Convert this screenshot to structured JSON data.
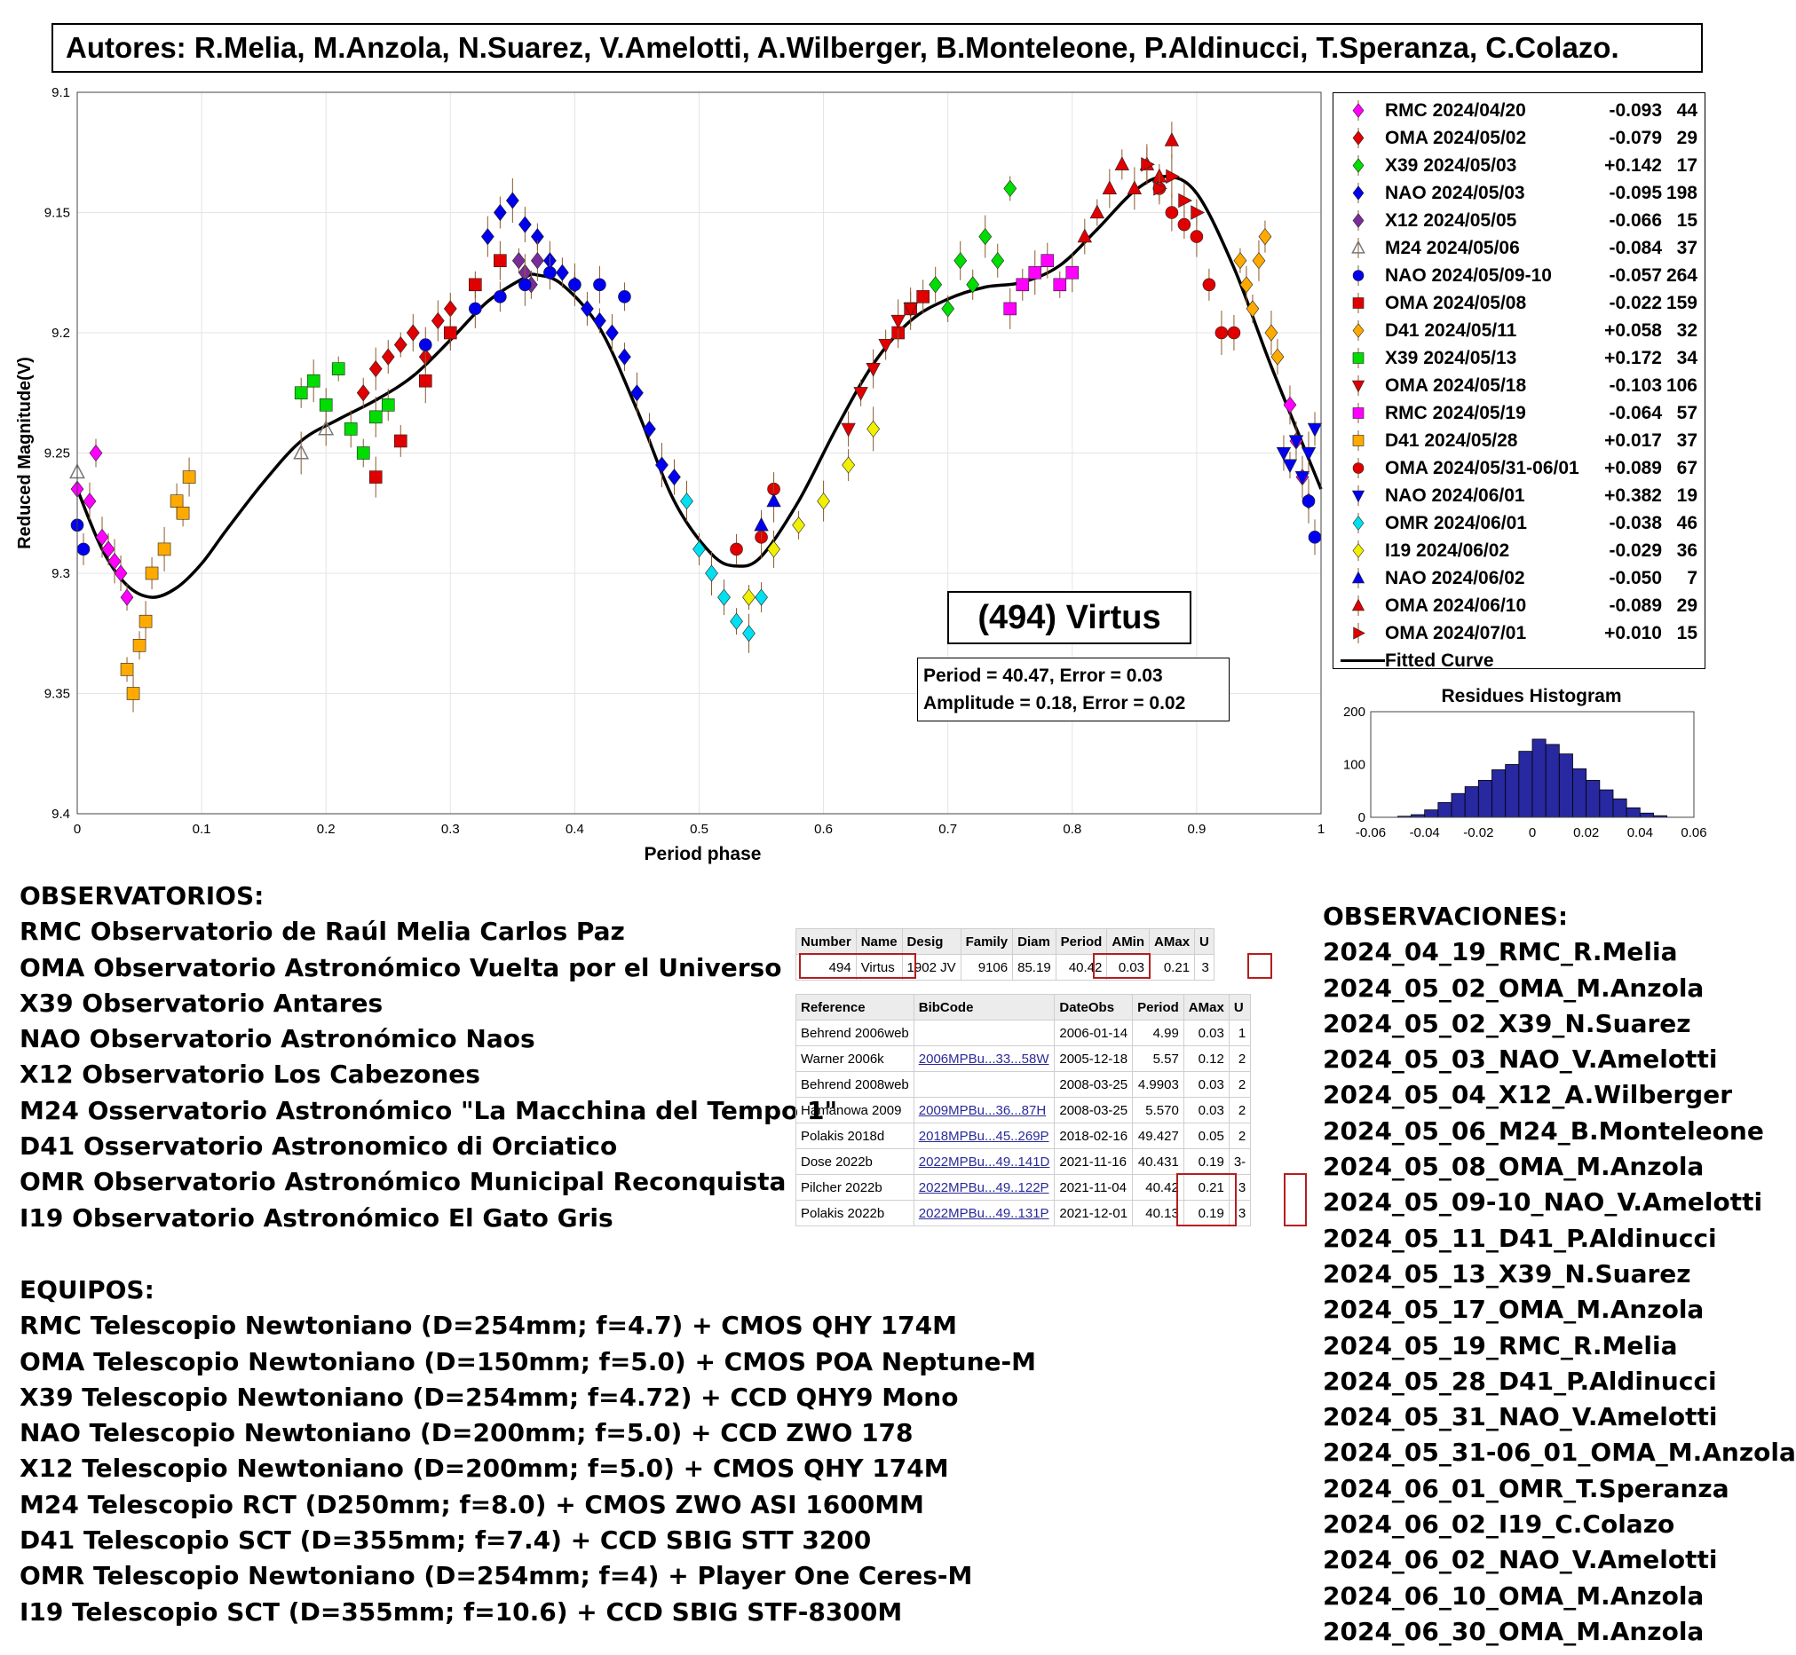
{
  "authors": "Autores: R.Melia, M.Anzola, N.Suarez, V.Amelotti, A.Wilberger, B.Monteleone, P.Aldinucci, T.Speranza, C.Colazo.",
  "chart_data": {
    "type": "scatter",
    "title": "(494) Virtus",
    "xlabel": "Period phase",
    "ylabel": "Reduced Magnitude(V)",
    "xlim": [
      0,
      1
    ],
    "ylim": [
      9.1,
      9.4
    ],
    "y_reversed": true,
    "xticks": [
      "0",
      "0.1",
      "0.2",
      "0.3",
      "0.4",
      "0.5",
      "0.6",
      "0.7",
      "0.8",
      "0.9",
      "1"
    ],
    "yticks": [
      "9.1",
      "9.15",
      "9.2",
      "9.25",
      "9.3",
      "9.35",
      "9.4"
    ],
    "grid": true,
    "legend_position": "right",
    "stats": {
      "period_line": "Period =  40.47, Error = 0.03",
      "amplitude_line": "Amplitude = 0.18, Error = 0.02"
    },
    "fitted_curve": {
      "name": "Fitted Curve",
      "x": [
        0,
        0.02,
        0.04,
        0.06,
        0.08,
        0.1,
        0.12,
        0.15,
        0.18,
        0.21,
        0.24,
        0.27,
        0.3,
        0.33,
        0.36,
        0.37,
        0.39,
        0.42,
        0.45,
        0.48,
        0.51,
        0.53,
        0.55,
        0.58,
        0.61,
        0.64,
        0.67,
        0.7,
        0.73,
        0.76,
        0.79,
        0.82,
        0.85,
        0.875,
        0.9,
        0.93,
        0.96,
        1.0
      ],
      "y": [
        9.265,
        9.29,
        9.305,
        9.31,
        9.306,
        9.296,
        9.282,
        9.262,
        9.245,
        9.236,
        9.228,
        9.218,
        9.203,
        9.187,
        9.177,
        9.176,
        9.18,
        9.198,
        9.232,
        9.27,
        9.292,
        9.297,
        9.293,
        9.27,
        9.24,
        9.213,
        9.195,
        9.186,
        9.181,
        9.179,
        9.172,
        9.157,
        9.141,
        9.135,
        9.142,
        9.173,
        9.214,
        9.265
      ]
    },
    "series": [
      {
        "name": "RMC 2024/04/20",
        "offset": "-0.093",
        "count": "44",
        "color": "#ff00ff",
        "marker": "diamond",
        "x": [
          0.0,
          0.01,
          0.015,
          0.02,
          0.025,
          0.03,
          0.035,
          0.04,
          0.975,
          0.98,
          0.985,
          0.99
        ],
        "y": [
          9.265,
          9.27,
          9.25,
          9.285,
          9.29,
          9.295,
          9.3,
          9.31,
          9.23,
          9.245,
          9.26,
          9.27
        ]
      },
      {
        "name": "OMA 2024/05/02",
        "offset": "-0.079",
        "count": "29",
        "color": "#e00000",
        "marker": "diamond",
        "x": [
          0.23,
          0.24,
          0.25,
          0.26,
          0.27,
          0.28,
          0.29,
          0.3
        ],
        "y": [
          9.225,
          9.215,
          9.21,
          9.205,
          9.2,
          9.21,
          9.195,
          9.19
        ]
      },
      {
        "name": "X39 2024/05/03",
        "offset": "+0.142",
        "count": "17",
        "color": "#00dd00",
        "marker": "diamond",
        "x": [
          0.69,
          0.7,
          0.71,
          0.72,
          0.73,
          0.74,
          0.75
        ],
        "y": [
          9.18,
          9.19,
          9.17,
          9.18,
          9.16,
          9.17,
          9.14
        ]
      },
      {
        "name": "NAO 2024/05/03",
        "offset": "-0.095",
        "count": "198",
        "color": "#0000ee",
        "marker": "diamond",
        "x": [
          0.33,
          0.34,
          0.35,
          0.36,
          0.37,
          0.38,
          0.39,
          0.4,
          0.41,
          0.42,
          0.43,
          0.44,
          0.45,
          0.46,
          0.47,
          0.48
        ],
        "y": [
          9.16,
          9.15,
          9.145,
          9.155,
          9.16,
          9.17,
          9.175,
          9.18,
          9.19,
          9.195,
          9.2,
          9.21,
          9.225,
          9.24,
          9.255,
          9.26
        ]
      },
      {
        "name": "X12 2024/05/05",
        "offset": "-0.066",
        "count": "15",
        "color": "#7a2d9a",
        "marker": "diamond",
        "x": [
          0.355,
          0.36,
          0.365,
          0.37
        ],
        "y": [
          9.17,
          9.175,
          9.18,
          9.17
        ]
      },
      {
        "name": "M24 2024/05/06",
        "offset": "-0.084",
        "count": "37",
        "color": "#ff00ff",
        "marker": "triangle-up-open",
        "x": [
          0.0,
          0.18,
          0.2
        ],
        "y": [
          9.258,
          9.25,
          9.24
        ]
      },
      {
        "name": "NAO 2024/05/09-10",
        "offset": "-0.057",
        "count": "264",
        "color": "#0000ee",
        "marker": "circle",
        "x": [
          0.28,
          0.3,
          0.32,
          0.34,
          0.36,
          0.38,
          0.4,
          0.42,
          0.44,
          0.0,
          0.005,
          0.99,
          0.995
        ],
        "y": [
          9.205,
          9.2,
          9.19,
          9.185,
          9.18,
          9.175,
          9.18,
          9.18,
          9.185,
          9.28,
          9.29,
          9.27,
          9.285
        ]
      },
      {
        "name": "OMA 2024/05/08",
        "offset": "-0.022",
        "count": "159",
        "color": "#e00000",
        "marker": "square",
        "x": [
          0.24,
          0.26,
          0.28,
          0.3,
          0.32,
          0.34,
          0.66,
          0.67,
          0.68
        ],
        "y": [
          9.26,
          9.245,
          9.22,
          9.2,
          9.18,
          9.17,
          9.2,
          9.19,
          9.185
        ]
      },
      {
        "name": "D41 2024/05/11",
        "offset": "+0.058",
        "count": "32",
        "color": "#ffaa00",
        "marker": "diamond",
        "x": [
          0.935,
          0.94,
          0.945,
          0.95,
          0.955,
          0.96,
          0.965
        ],
        "y": [
          9.17,
          9.18,
          9.19,
          9.17,
          9.16,
          9.2,
          9.21
        ]
      },
      {
        "name": "X39 2024/05/13",
        "offset": "+0.172",
        "count": "34",
        "color": "#00dd00",
        "marker": "square",
        "x": [
          0.18,
          0.19,
          0.2,
          0.21,
          0.22,
          0.23,
          0.24,
          0.25
        ],
        "y": [
          9.225,
          9.22,
          9.23,
          9.215,
          9.24,
          9.25,
          9.235,
          9.23
        ]
      },
      {
        "name": "OMA 2024/05/18",
        "offset": "-0.103",
        "count": "106",
        "color": "#e00000",
        "marker": "triangle-down",
        "x": [
          0.62,
          0.63,
          0.64,
          0.65,
          0.66,
          0.67
        ],
        "y": [
          9.24,
          9.225,
          9.215,
          9.205,
          9.195,
          9.19
        ]
      },
      {
        "name": "RMC 2024/05/19",
        "offset": "-0.064",
        "count": "57",
        "color": "#ff00ff",
        "marker": "square",
        "x": [
          0.75,
          0.76,
          0.77,
          0.78,
          0.79,
          0.8
        ],
        "y": [
          9.19,
          9.18,
          9.175,
          9.17,
          9.18,
          9.175
        ]
      },
      {
        "name": "D41 2024/05/28",
        "offset": "+0.017",
        "count": "37",
        "color": "#ffaa00",
        "marker": "square",
        "x": [
          0.04,
          0.045,
          0.05,
          0.055,
          0.06,
          0.07,
          0.08,
          0.085,
          0.09
        ],
        "y": [
          9.34,
          9.35,
          9.33,
          9.32,
          9.3,
          9.29,
          9.27,
          9.275,
          9.26
        ]
      },
      {
        "name": "OMA 2024/05/31-06/01",
        "offset": "+0.089",
        "count": "67",
        "color": "#e00000",
        "marker": "circle",
        "x": [
          0.53,
          0.55,
          0.56,
          0.87,
          0.88,
          0.89,
          0.9,
          0.91,
          0.92,
          0.93
        ],
        "y": [
          9.29,
          9.285,
          9.265,
          9.14,
          9.15,
          9.155,
          9.16,
          9.18,
          9.2,
          9.2
        ]
      },
      {
        "name": "NAO 2024/06/01",
        "offset": "+0.382",
        "count": "19",
        "color": "#0000ee",
        "marker": "triangle-down",
        "x": [
          0.97,
          0.975,
          0.98,
          0.985,
          0.99,
          0.995
        ],
        "y": [
          9.25,
          9.255,
          9.245,
          9.26,
          9.25,
          9.24
        ]
      },
      {
        "name": "OMR 2024/06/01",
        "offset": "-0.038",
        "count": "46",
        "color": "#00e0f0",
        "marker": "diamond",
        "x": [
          0.49,
          0.5,
          0.51,
          0.52,
          0.53,
          0.54,
          0.55
        ],
        "y": [
          9.27,
          9.29,
          9.3,
          9.31,
          9.32,
          9.325,
          9.31
        ]
      },
      {
        "name": "I19 2024/06/02",
        "offset": "-0.029",
        "count": "36",
        "color": "#f0f000",
        "marker": "diamond",
        "x": [
          0.54,
          0.56,
          0.58,
          0.6,
          0.62,
          0.64
        ],
        "y": [
          9.31,
          9.29,
          9.28,
          9.27,
          9.255,
          9.24
        ]
      },
      {
        "name": "NAO 2024/06/02",
        "offset": "-0.050",
        "count": "7",
        "color": "#0000ee",
        "marker": "triangle-up",
        "x": [
          0.55,
          0.56
        ],
        "y": [
          9.28,
          9.27
        ]
      },
      {
        "name": "OMA 2024/06/10",
        "offset": "-0.089",
        "count": "29",
        "color": "#e00000",
        "marker": "triangle-up",
        "x": [
          0.81,
          0.82,
          0.83,
          0.84,
          0.85,
          0.86,
          0.87,
          0.88
        ],
        "y": [
          9.16,
          9.15,
          9.14,
          9.13,
          9.14,
          9.13,
          9.135,
          9.12
        ]
      },
      {
        "name": "OMA 2024/07/01",
        "offset": "+0.010",
        "count": "15",
        "color": "#e00000",
        "marker": "triangle-right",
        "x": [
          0.86,
          0.87,
          0.88,
          0.89,
          0.9
        ],
        "y": [
          9.13,
          9.14,
          9.135,
          9.145,
          9.15
        ]
      }
    ],
    "histogram": {
      "title": "Residues Histogram",
      "xlim": [
        -0.06,
        0.06
      ],
      "ylim": [
        0,
        200
      ],
      "xticks": [
        "-0.06",
        "-0.04",
        "-0.02",
        "0",
        "0.02",
        "0.04",
        "0.06"
      ],
      "yticks": [
        "0",
        "100",
        "200"
      ],
      "bin_width": 0.005,
      "bin_centers": [
        -0.0475,
        -0.0425,
        -0.0375,
        -0.0325,
        -0.0275,
        -0.0225,
        -0.0175,
        -0.0125,
        -0.0075,
        -0.0025,
        0.0025,
        0.0075,
        0.0125,
        0.0175,
        0.0225,
        0.0275,
        0.0325,
        0.0375,
        0.0425,
        0.0475
      ],
      "counts": [
        2,
        5,
        14,
        28,
        45,
        58,
        70,
        90,
        100,
        125,
        148,
        138,
        120,
        92,
        70,
        52,
        35,
        18,
        8,
        3
      ],
      "color": "#2828a0"
    }
  },
  "observatorios": {
    "title": "OBSERVATORIOS:",
    "items": [
      "RMC Observatorio de Raúl Melia Carlos Paz",
      "OMA Observatorio Astronómico Vuelta por el Universo",
      "X39 Observatorio Antares",
      "NAO Observatorio Astronómico Naos",
      "X12 Observatorio Los Cabezones",
      "M24 Osservatorio Astronómico \"La Macchina del Tempo 1\"",
      "D41 Osservatorio Astronomico di Orciatico",
      "OMR Observatorio Astronómico Municipal Reconquista",
      "I19 Observatorio Astronómico El Gato Gris"
    ]
  },
  "equipos": {
    "title": "EQUIPOS:",
    "items": [
      "RMC Telescopio Newtoniano (D=254mm; f=4.7) + CMOS QHY 174M",
      "OMA Telescopio Newtoniano (D=150mm; f=5.0) + CMOS POA Neptune-M",
      "X39 Telescopio Newtoniano (D=254mm; f=4.72) + CCD QHY9 Mono",
      "NAO Telescopio Newtoniano (D=200mm; f=5.0) + CCD ZWO 178",
      "X12 Telescopio Newtoniano (D=200mm; f=5.0) + CMOS QHY 174M",
      "M24 Telescopio RCT (D250mm; f=8.0) + CMOS ZWO ASI 1600MM",
      "D41 Telescopio SCT (D=355mm; f=7.4) + CCD SBIG STT 3200",
      "OMR Telescopio Newtoniano (D=254mm; f=4) + Player One Ceres-M",
      "I19 Telescopio SCT (D=355mm; f=10.6) + CCD SBIG STF-8300M"
    ]
  },
  "observaciones": {
    "title": "OBSERVACIONES:",
    "items": [
      "2024_04_19_RMC_R.Melia",
      "2024_05_02_OMA_M.Anzola",
      "2024_05_02_X39_N.Suarez",
      "2024_05_03_NAO_V.Amelotti",
      "2024_05_04_X12_A.Wilberger",
      "2024_05_06_M24_B.Monteleone",
      "2024_05_08_OMA_M.Anzola",
      "2024_05_09-10_NAO_V.Amelotti",
      "2024_05_11_D41_P.Aldinucci",
      "2024_05_13_X39_N.Suarez",
      "2024_05_17_OMA_M.Anzola",
      "2024_05_19_RMC_R.Melia",
      "2024_05_28_D41_P.Aldinucci",
      "2024_05_31_NAO_V.Amelotti",
      "2024_05_31-06_01_OMA_M.Anzola",
      "2024_06_01_OMR_T.Speranza",
      "2024_06_02_I19_C.Colazo",
      "2024_06_02_NAO_V.Amelotti",
      "2024_06_10_OMA_M.Anzola",
      "2024_06_30_OMA_M.Anzola"
    ]
  },
  "lcdb": {
    "summary_headers": [
      "Number",
      "Name",
      "Desig",
      "Family",
      "Diam",
      "Period",
      "AMin",
      "AMax",
      "U"
    ],
    "summary_row": [
      "494",
      "Virtus",
      "1902 JV",
      "9106",
      "85.19",
      "40.42",
      "0.03",
      "0.21",
      "3"
    ],
    "ref_headers": [
      "Reference",
      "BibCode",
      "DateObs",
      "Period",
      "AMax",
      "U"
    ],
    "ref_rows": [
      [
        "Behrend 2006web",
        "",
        "2006-01-14",
        "4.99",
        "0.03",
        "1"
      ],
      [
        "Warner 2006k",
        "2006MPBu...33...58W",
        "2005-12-18",
        "5.57",
        "0.12",
        "2"
      ],
      [
        "Behrend 2008web",
        "",
        "2008-03-25",
        "4.9903",
        "0.03",
        "2"
      ],
      [
        "Hamanowa 2009",
        "2009MPBu...36...87H",
        "2008-03-25",
        "5.570",
        "0.03",
        "2"
      ],
      [
        "Polakis 2018d",
        "2018MPBu...45..269P",
        "2018-02-16",
        "49.427",
        "0.05",
        "2"
      ],
      [
        "Dose 2022b",
        "2022MPBu...49..141D",
        "2021-11-16",
        "40.431",
        "0.19",
        "3-"
      ],
      [
        "Pilcher 2022b",
        "2022MPBu...49..122P",
        "2021-11-04",
        "40.42",
        "0.21",
        "3"
      ],
      [
        "Polakis 2022b",
        "2022MPBu...49..131P",
        "2021-12-01",
        "40.13",
        "0.19",
        "3"
      ]
    ]
  }
}
